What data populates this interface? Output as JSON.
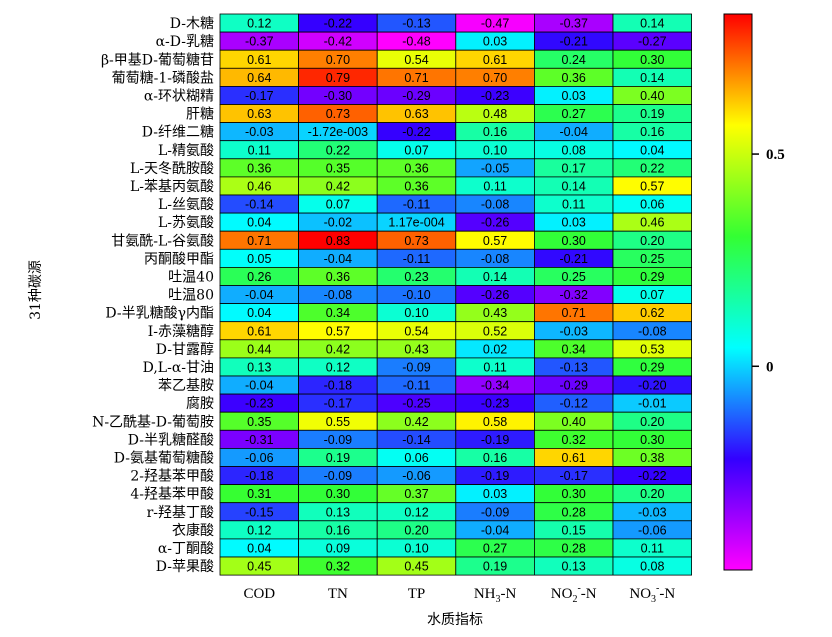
{
  "chart_data": {
    "type": "heatmap",
    "ylabel": "31种碳源",
    "xlabel": "水质指标",
    "rows": [
      "D-木糖",
      "α-D-乳糖",
      "β-甲基D-葡萄糖苷",
      "葡萄糖-1-磷酸盐",
      "α-环状糊精",
      "肝糖",
      "D-纤维二糖",
      "L-精氨酸",
      "L-天冬酰胺酸",
      "L-苯基丙氨酸",
      "L-丝氨酸",
      "L-苏氨酸",
      "甘氨酰-L-谷氨酸",
      "丙酮酸甲酯",
      "吐温40",
      "吐温80",
      "D-半乳糖酸γ内酯",
      "I-赤藻糖醇",
      "D-甘露醇",
      "D,L-α-甘油",
      "苯乙基胺",
      "腐胺",
      "N-乙酰基-D-葡萄胺",
      "D-半乳糖醛酸",
      "D-氨基葡萄糖酸",
      "2-羟基苯甲酸",
      "4-羟基苯甲酸",
      "r-羟基丁酸",
      "衣康酸",
      "α-丁酮酸",
      "D-苹果酸"
    ],
    "columns": [
      {
        "base": "COD",
        "sub": "",
        "sup": "",
        "tail": ""
      },
      {
        "base": "TN",
        "sub": "",
        "sup": "",
        "tail": ""
      },
      {
        "base": "TP",
        "sub": "",
        "sup": "",
        "tail": ""
      },
      {
        "base": "NH",
        "sub": "3",
        "sup": "",
        "tail": "-N"
      },
      {
        "base": "NO",
        "sub": "2",
        "sup": "-",
        "tail": "-N"
      },
      {
        "base": "NO",
        "sub": "3",
        "sup": "-",
        "tail": "-N"
      }
    ],
    "labels": [
      [
        "0.12",
        "-0.22",
        "-0.13",
        "-0.47",
        "-0.37",
        "0.14"
      ],
      [
        "-0.37",
        "-0.42",
        "-0.48",
        "0.03",
        "-0.21",
        "-0.27"
      ],
      [
        "0.61",
        "0.70",
        "0.54",
        "0.61",
        "0.24",
        "0.30"
      ],
      [
        "0.64",
        "0.79",
        "0.71",
        "0.70",
        "0.36",
        "0.14"
      ],
      [
        "-0.17",
        "-0.30",
        "-0.29",
        "-0.23",
        "0.03",
        "0.40"
      ],
      [
        "0.63",
        "0.73",
        "0.63",
        "0.48",
        "0.27",
        "0.19"
      ],
      [
        "-0.03",
        "-1.72e-003",
        "-0.22",
        "0.16",
        "-0.04",
        "0.16"
      ],
      [
        "0.11",
        "0.22",
        "0.07",
        "0.10",
        "0.08",
        "0.04"
      ],
      [
        "0.36",
        "0.35",
        "0.36",
        "-0.05",
        "0.17",
        "0.22"
      ],
      [
        "0.46",
        "0.42",
        "0.36",
        "0.11",
        "0.14",
        "0.57"
      ],
      [
        "-0.14",
        "0.07",
        "-0.11",
        "-0.08",
        "0.11",
        "0.06"
      ],
      [
        "0.04",
        "-0.02",
        "1.17e-004",
        "-0.26",
        "0.03",
        "0.46"
      ],
      [
        "0.71",
        "0.83",
        "0.73",
        "0.57",
        "0.30",
        "0.20"
      ],
      [
        "0.05",
        "-0.04",
        "-0.11",
        "-0.08",
        "-0.21",
        "0.25"
      ],
      [
        "0.26",
        "0.36",
        "0.23",
        "0.14",
        "0.25",
        "0.29"
      ],
      [
        "-0.04",
        "-0.08",
        "-0.10",
        "-0.26",
        "-0.32",
        "0.07"
      ],
      [
        "0.04",
        "0.34",
        "0.10",
        "0.43",
        "0.71",
        "0.62"
      ],
      [
        "0.61",
        "0.57",
        "0.54",
        "0.52",
        "-0.03",
        "-0.08"
      ],
      [
        "0.44",
        "0.42",
        "0.43",
        "0.02",
        "0.34",
        "0.53"
      ],
      [
        "0.13",
        "0.12",
        "-0.09",
        "0.11",
        "-0.13",
        "0.29"
      ],
      [
        "-0.04",
        "-0.18",
        "-0.11",
        "-0.34",
        "-0.29",
        "-0.20"
      ],
      [
        "-0.23",
        "-0.17",
        "-0.25",
        "-0.23",
        "-0.12",
        "-0.01"
      ],
      [
        "0.35",
        "0.55",
        "0.42",
        "0.58",
        "0.40",
        "0.20"
      ],
      [
        "-0.31",
        "-0.09",
        "-0.14",
        "-0.19",
        "0.32",
        "0.30"
      ],
      [
        "-0.06",
        "0.19",
        "0.06",
        "0.16",
        "0.61",
        "0.38"
      ],
      [
        "-0.18",
        "-0.09",
        "-0.06",
        "-0.19",
        "-0.17",
        "-0.22"
      ],
      [
        "0.31",
        "0.30",
        "0.37",
        "0.03",
        "0.30",
        "0.20"
      ],
      [
        "-0.15",
        "0.13",
        "0.12",
        "-0.09",
        "0.28",
        "-0.03"
      ],
      [
        "0.12",
        "0.16",
        "0.20",
        "-0.04",
        "0.15",
        "-0.06"
      ],
      [
        "0.04",
        "0.09",
        "0.10",
        "0.27",
        "0.28",
        "0.11"
      ],
      [
        "0.45",
        "0.32",
        "0.45",
        "0.19",
        "0.13",
        "0.08"
      ]
    ],
    "colorbar": {
      "range": [
        -0.48,
        0.83
      ],
      "ticks": [
        {
          "value": 0,
          "label": "0"
        },
        {
          "value": 0.5,
          "label": "0.5"
        }
      ],
      "colors_low_to_high": [
        "#ff00ff",
        "#3300ff",
        "#00ffff",
        "#33ff33",
        "#ffff00",
        "#ff0000"
      ]
    }
  }
}
